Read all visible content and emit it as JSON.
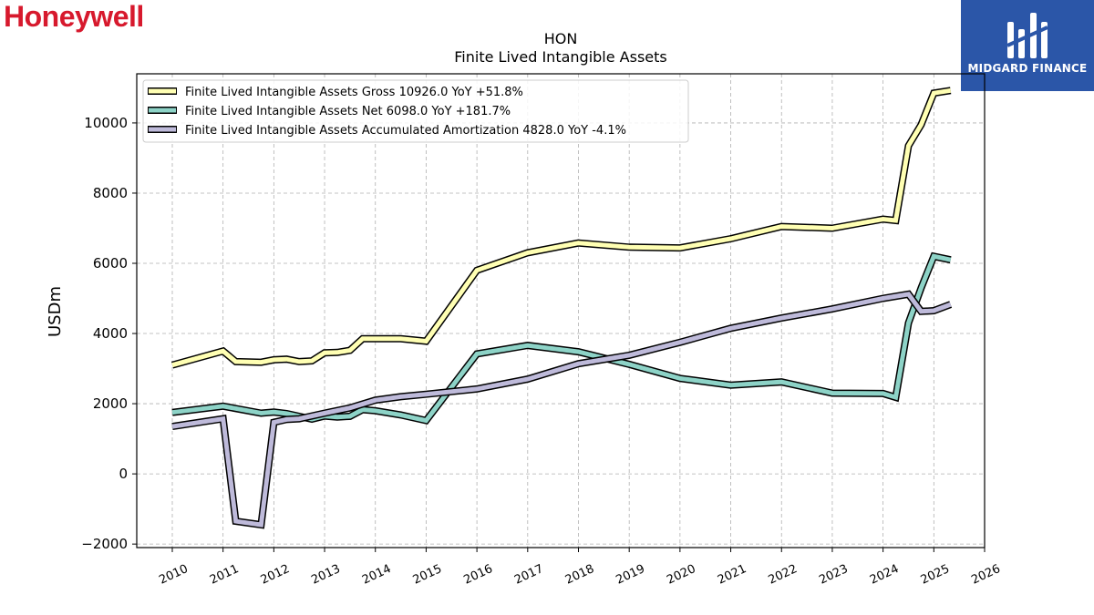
{
  "branding": {
    "company_logo_text": "Honeywell",
    "company_logo_color": "#d7192d",
    "publisher_name": "MIDGARD FINANCE",
    "publisher_color": "#2b56a8"
  },
  "chart_data": {
    "type": "line",
    "title": "HON",
    "subtitle": "Finite Lived Intangible Assets",
    "xlabel": "",
    "ylabel": "USDm",
    "xlim": [
      2009.3,
      2026.0
    ],
    "ylim": [
      -2100,
      11400
    ],
    "x_ticks": [
      "2010",
      "2011",
      "2012",
      "2013",
      "2014",
      "2015",
      "2016",
      "2017",
      "2018",
      "2019",
      "2020",
      "2021",
      "2022",
      "2023",
      "2024",
      "2025",
      "2026"
    ],
    "y_ticks": [
      -2000,
      0,
      2000,
      4000,
      6000,
      8000,
      10000
    ],
    "grid": true,
    "legend_position": "top-left",
    "series": [
      {
        "name": "Finite Lived Intangible Assets Gross",
        "legend_label": "Finite Lived Intangible Assets Gross  10926.0 YoY +51.8%",
        "color": "#ffffb3",
        "points": [
          [
            2010.0,
            3100
          ],
          [
            2011.0,
            3500
          ],
          [
            2011.25,
            3200
          ],
          [
            2011.75,
            3180
          ],
          [
            2012.0,
            3250
          ],
          [
            2012.25,
            3270
          ],
          [
            2012.5,
            3200
          ],
          [
            2012.75,
            3220
          ],
          [
            2013.0,
            3450
          ],
          [
            2013.25,
            3460
          ],
          [
            2013.5,
            3520
          ],
          [
            2013.75,
            3850
          ],
          [
            2014.0,
            3850
          ],
          [
            2014.5,
            3850
          ],
          [
            2015.0,
            3780
          ],
          [
            2016.0,
            5800
          ],
          [
            2017.0,
            6300
          ],
          [
            2018.0,
            6580
          ],
          [
            2019.0,
            6460
          ],
          [
            2020.0,
            6440
          ],
          [
            2021.0,
            6700
          ],
          [
            2022.0,
            7050
          ],
          [
            2023.0,
            7000
          ],
          [
            2024.0,
            7260
          ],
          [
            2024.25,
            7220
          ],
          [
            2024.5,
            9350
          ],
          [
            2024.75,
            9950
          ],
          [
            2025.0,
            10850
          ],
          [
            2025.33,
            10926
          ]
        ]
      },
      {
        "name": "Finite Lived Intangible Assets Net",
        "legend_label": "Finite Lived Intangible Assets Net  6098.0 YoY +181.7%",
        "color": "#8dd3c7",
        "points": [
          [
            2010.0,
            1750
          ],
          [
            2011.0,
            1930
          ],
          [
            2011.75,
            1730
          ],
          [
            2012.0,
            1760
          ],
          [
            2012.25,
            1720
          ],
          [
            2012.75,
            1560
          ],
          [
            2013.0,
            1650
          ],
          [
            2013.25,
            1620
          ],
          [
            2013.5,
            1640
          ],
          [
            2013.75,
            1830
          ],
          [
            2014.0,
            1800
          ],
          [
            2014.5,
            1680
          ],
          [
            2015.0,
            1520
          ],
          [
            2016.0,
            3420
          ],
          [
            2017.0,
            3660
          ],
          [
            2018.0,
            3480
          ],
          [
            2019.0,
            3120
          ],
          [
            2020.0,
            2720
          ],
          [
            2021.0,
            2530
          ],
          [
            2022.0,
            2620
          ],
          [
            2023.0,
            2300
          ],
          [
            2024.0,
            2290
          ],
          [
            2024.25,
            2180
          ],
          [
            2024.5,
            4300
          ],
          [
            2024.75,
            5300
          ],
          [
            2025.0,
            6200
          ],
          [
            2025.33,
            6098
          ]
        ]
      },
      {
        "name": "Finite Lived Intangible Assets Accumulated Amortization",
        "legend_label": "Finite Lived Intangible Assets Accumulated Amortization  4828.0 YoY -4.1%",
        "color": "#bebada",
        "points": [
          [
            2010.0,
            1350
          ],
          [
            2011.0,
            1570
          ],
          [
            2011.25,
            -1350
          ],
          [
            2011.75,
            -1450
          ],
          [
            2012.0,
            1470
          ],
          [
            2012.25,
            1550
          ],
          [
            2012.5,
            1570
          ],
          [
            2013.0,
            1730
          ],
          [
            2013.5,
            1880
          ],
          [
            2014.0,
            2100
          ],
          [
            2014.5,
            2200
          ],
          [
            2015.0,
            2270
          ],
          [
            2016.0,
            2420
          ],
          [
            2017.0,
            2700
          ],
          [
            2018.0,
            3140
          ],
          [
            2019.0,
            3380
          ],
          [
            2020.0,
            3750
          ],
          [
            2021.0,
            4150
          ],
          [
            2022.0,
            4440
          ],
          [
            2023.0,
            4700
          ],
          [
            2024.0,
            5000
          ],
          [
            2024.5,
            5120
          ],
          [
            2024.75,
            4630
          ],
          [
            2025.0,
            4650
          ],
          [
            2025.33,
            4828
          ]
        ]
      }
    ]
  }
}
